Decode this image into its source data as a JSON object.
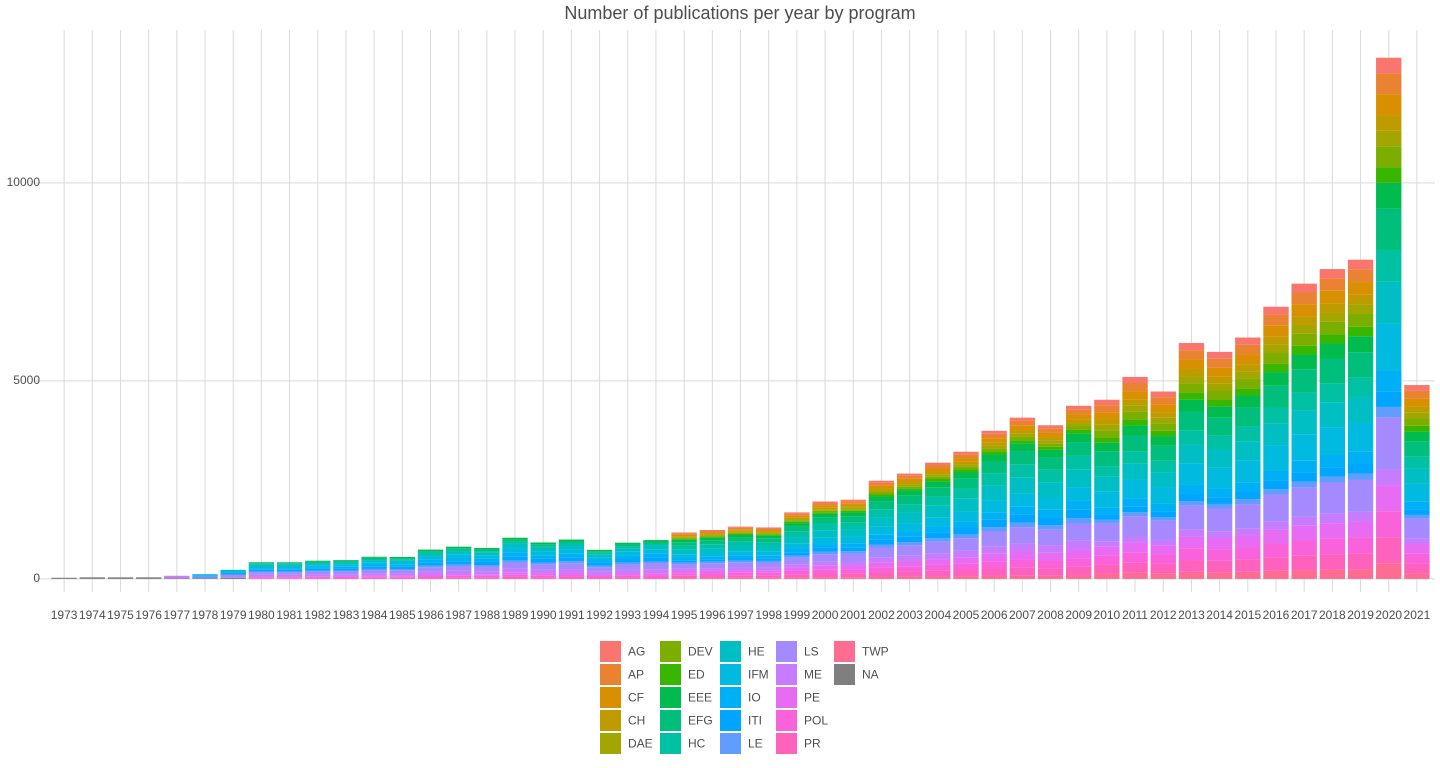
{
  "chart_data": {
    "type": "stacked-bar",
    "title": "Number of publications per year by program",
    "categories": [
      "1973",
      "1974",
      "1975",
      "1976",
      "1977",
      "1978",
      "1979",
      "1980",
      "1981",
      "1982",
      "1983",
      "1984",
      "1985",
      "1986",
      "1987",
      "1988",
      "1989",
      "1990",
      "1991",
      "1992",
      "1993",
      "1994",
      "1995",
      "1996",
      "1997",
      "1998",
      "1999",
      "2000",
      "2001",
      "2002",
      "2003",
      "2004",
      "2005",
      "2006",
      "2007",
      "2008",
      "2009",
      "2010",
      "2011",
      "2012",
      "2013",
      "2014",
      "2015",
      "2016",
      "2017",
      "2018",
      "2019",
      "2020",
      "2021"
    ],
    "ylim": [
      -330,
      13860
    ],
    "yticks": [
      0,
      5000,
      10000
    ],
    "grid": true,
    "series": [
      {
        "name": "AG",
        "color": "#F8766D",
        "values": [
          0,
          0,
          0,
          0,
          0,
          0,
          0,
          0,
          0,
          0,
          0,
          0,
          0,
          0,
          0,
          0,
          0,
          0,
          0,
          0,
          0,
          0,
          23,
          25,
          26,
          26,
          34,
          39,
          40,
          50,
          53,
          59,
          64,
          75,
          81,
          78,
          87,
          136,
          153,
          142,
          179,
          172,
          183,
          206,
          224,
          235,
          242,
          395,
          147
        ]
      },
      {
        "name": "AP",
        "color": "#EA8331",
        "values": [
          0,
          0,
          0,
          0,
          0,
          0,
          0,
          0,
          0,
          0,
          0,
          0,
          0,
          0,
          0,
          0,
          0,
          0,
          0,
          0,
          0,
          0,
          35,
          37,
          40,
          39,
          50,
          59,
          60,
          74,
          80,
          88,
          96,
          112,
          122,
          116,
          131,
          181,
          204,
          189,
          238,
          229,
          244,
          275,
          298,
          313,
          322,
          526,
          196
        ]
      },
      {
        "name": "CF",
        "color": "#D89000",
        "values": [
          0,
          0,
          0,
          0,
          0,
          0,
          0,
          0,
          0,
          0,
          0,
          0,
          0,
          0,
          0,
          0,
          0,
          0,
          0,
          0,
          0,
          0,
          35,
          37,
          40,
          39,
          50,
          59,
          60,
          74,
          80,
          88,
          96,
          112,
          122,
          116,
          131,
          181,
          204,
          189,
          238,
          229,
          244,
          275,
          298,
          313,
          322,
          526,
          196
        ]
      },
      {
        "name": "CH",
        "color": "#C09B00",
        "values": [
          0,
          0,
          0,
          0,
          0,
          0,
          0,
          0,
          0,
          0,
          0,
          0,
          0,
          0,
          0,
          0,
          0,
          0,
          0,
          0,
          0,
          0,
          23,
          25,
          26,
          26,
          34,
          39,
          40,
          50,
          53,
          59,
          64,
          75,
          81,
          78,
          87,
          136,
          153,
          142,
          179,
          172,
          183,
          206,
          224,
          235,
          242,
          395,
          147
        ]
      },
      {
        "name": "DAE",
        "color": "#A3A500",
        "values": [
          0,
          0,
          0,
          0,
          0,
          0,
          0,
          0,
          0,
          0,
          0,
          0,
          0,
          0,
          0,
          0,
          0,
          0,
          0,
          0,
          0,
          0,
          23,
          25,
          26,
          26,
          34,
          39,
          40,
          50,
          53,
          59,
          64,
          75,
          81,
          78,
          87,
          136,
          153,
          142,
          179,
          172,
          183,
          206,
          224,
          235,
          242,
          395,
          147
        ]
      },
      {
        "name": "DEV",
        "color": "#7CAE00",
        "values": [
          0,
          0,
          0,
          0,
          0,
          0,
          0,
          0,
          0,
          0,
          0,
          0,
          0,
          0,
          0,
          0,
          0,
          0,
          0,
          0,
          0,
          0,
          23,
          25,
          26,
          26,
          34,
          39,
          40,
          50,
          53,
          59,
          64,
          75,
          81,
          78,
          87,
          181,
          204,
          189,
          238,
          229,
          244,
          275,
          298,
          313,
          322,
          526,
          196
        ]
      },
      {
        "name": "ED",
        "color": "#39B600",
        "values": [
          0,
          0,
          0,
          0,
          0,
          0,
          0,
          0,
          0,
          0,
          0,
          0,
          0,
          0,
          0,
          0,
          0,
          0,
          0,
          0,
          0,
          0,
          23,
          25,
          26,
          26,
          34,
          39,
          40,
          50,
          53,
          59,
          64,
          75,
          81,
          78,
          87,
          136,
          153,
          142,
          179,
          172,
          183,
          206,
          224,
          235,
          242,
          395,
          147
        ]
      },
      {
        "name": "EEE",
        "color": "#00BB4E",
        "values": [
          0,
          0,
          0,
          0,
          0,
          0,
          0,
          21,
          21,
          23,
          24,
          28,
          28,
          37,
          41,
          39,
          52,
          46,
          50,
          37,
          46,
          49,
          59,
          62,
          66,
          65,
          84,
          98,
          100,
          124,
          133,
          147,
          161,
          187,
          204,
          194,
          219,
          226,
          255,
          237,
          298,
          287,
          305,
          344,
          373,
          391,
          403,
          658,
          245
        ]
      },
      {
        "name": "EFG",
        "color": "#00BF7D",
        "values": [
          0,
          0,
          0,
          0,
          0,
          0,
          0,
          21,
          21,
          23,
          24,
          28,
          28,
          37,
          41,
          39,
          52,
          46,
          50,
          37,
          46,
          49,
          94,
          98,
          106,
          104,
          134,
          156,
          160,
          198,
          213,
          234,
          257,
          299,
          326,
          310,
          350,
          362,
          408,
          378,
          476,
          458,
          487,
          550,
          596,
          626,
          645,
          1053,
          391
        ]
      },
      {
        "name": "HC",
        "color": "#00C1A3",
        "values": [
          0,
          0,
          0,
          0,
          0,
          0,
          0,
          21,
          21,
          23,
          24,
          28,
          28,
          37,
          41,
          39,
          52,
          46,
          50,
          37,
          46,
          49,
          94,
          98,
          106,
          104,
          134,
          156,
          160,
          198,
          213,
          234,
          257,
          299,
          326,
          310,
          350,
          271,
          306,
          284,
          357,
          344,
          365,
          412,
          447,
          469,
          484,
          790,
          293
        ]
      },
      {
        "name": "HE",
        "color": "#00BFC4",
        "values": [
          0,
          0,
          0,
          0,
          0,
          0,
          60,
          42,
          42,
          46,
          47,
          56,
          55,
          74,
          81,
          78,
          104,
          92,
          99,
          73,
          91,
          98,
          117,
          123,
          132,
          130,
          168,
          195,
          200,
          248,
          266,
          293,
          321,
          374,
          407,
          388,
          437,
          362,
          408,
          378,
          476,
          458,
          487,
          550,
          596,
          626,
          645,
          1053,
          391
        ]
      },
      {
        "name": "IFM",
        "color": "#00BAE0",
        "values": [
          0,
          0,
          0,
          0,
          0,
          0,
          0,
          42,
          42,
          46,
          47,
          56,
          55,
          74,
          81,
          78,
          104,
          92,
          99,
          73,
          91,
          98,
          94,
          98,
          106,
          104,
          134,
          156,
          160,
          198,
          213,
          234,
          257,
          299,
          326,
          310,
          350,
          407,
          459,
          426,
          536,
          516,
          548,
          618,
          671,
          704,
          725,
          1184,
          440
        ]
      },
      {
        "name": "IO",
        "color": "#00B0F6",
        "values": [
          0,
          0,
          0,
          0,
          0,
          40,
          0,
          42,
          42,
          46,
          47,
          56,
          55,
          74,
          81,
          78,
          104,
          92,
          99,
          73,
          91,
          98,
          59,
          62,
          66,
          65,
          84,
          98,
          100,
          124,
          133,
          147,
          161,
          187,
          204,
          194,
          219,
          181,
          204,
          189,
          238,
          229,
          244,
          275,
          298,
          313,
          322,
          526,
          196
        ]
      },
      {
        "name": "ITI",
        "color": "#00A5FF",
        "values": [
          0,
          0,
          0,
          0,
          0,
          0,
          60,
          42,
          42,
          46,
          47,
          56,
          55,
          74,
          81,
          78,
          104,
          92,
          99,
          73,
          91,
          98,
          59,
          62,
          66,
          65,
          84,
          98,
          100,
          124,
          133,
          147,
          161,
          187,
          204,
          194,
          219,
          136,
          153,
          142,
          179,
          172,
          183,
          206,
          224,
          235,
          242,
          395,
          147
        ]
      },
      {
        "name": "LE",
        "color": "#619CFF",
        "values": [
          0,
          0,
          0,
          0,
          0,
          60,
          0,
          21,
          21,
          23,
          24,
          28,
          28,
          37,
          41,
          39,
          52,
          46,
          50,
          37,
          46,
          49,
          35,
          37,
          40,
          39,
          50,
          59,
          60,
          74,
          80,
          88,
          96,
          112,
          122,
          116,
          131,
          90,
          102,
          95,
          119,
          115,
          122,
          137,
          149,
          156,
          161,
          263,
          98
        ]
      },
      {
        "name": "LS",
        "color": "#A58AFF",
        "values": [
          0,
          0,
          0,
          0,
          0,
          0,
          80,
          63,
          63,
          69,
          71,
          84,
          83,
          111,
          122,
          117,
          156,
          138,
          149,
          110,
          137,
          147,
          117,
          123,
          132,
          130,
          168,
          195,
          200,
          248,
          266,
          293,
          321,
          374,
          407,
          388,
          437,
          452,
          510,
          473,
          595,
          573,
          609,
          687,
          745,
          782,
          806,
          1316,
          489
        ]
      },
      {
        "name": "ME",
        "color": "#C77CFF",
        "values": [
          0,
          0,
          0,
          0,
          60,
          0,
          0,
          42,
          42,
          46,
          47,
          56,
          55,
          74,
          81,
          78,
          104,
          92,
          99,
          73,
          91,
          98,
          59,
          62,
          66,
          65,
          84,
          98,
          100,
          124,
          133,
          147,
          161,
          187,
          204,
          194,
          219,
          136,
          153,
          142,
          179,
          172,
          183,
          206,
          224,
          235,
          242,
          395,
          147
        ]
      },
      {
        "name": "PE",
        "color": "#E76BF3",
        "values": [
          0,
          0,
          0,
          0,
          0,
          0,
          0,
          21,
          21,
          23,
          24,
          28,
          28,
          37,
          41,
          39,
          52,
          46,
          50,
          37,
          46,
          49,
          59,
          62,
          66,
          65,
          84,
          98,
          100,
          124,
          133,
          147,
          161,
          187,
          204,
          194,
          219,
          226,
          255,
          237,
          298,
          287,
          305,
          344,
          373,
          391,
          403,
          658,
          245
        ]
      },
      {
        "name": "POL",
        "color": "#FA62DB",
        "values": [
          0,
          0,
          0,
          0,
          0,
          0,
          0,
          21,
          21,
          23,
          24,
          28,
          28,
          37,
          41,
          39,
          52,
          46,
          50,
          37,
          46,
          49,
          59,
          62,
          66,
          65,
          84,
          98,
          100,
          124,
          133,
          147,
          161,
          187,
          204,
          194,
          219,
          226,
          255,
          237,
          298,
          287,
          305,
          344,
          373,
          391,
          403,
          658,
          245
        ]
      },
      {
        "name": "PR",
        "color": "#FF62BC",
        "values": [
          0,
          0,
          0,
          0,
          0,
          0,
          0,
          21,
          21,
          23,
          24,
          28,
          28,
          37,
          41,
          39,
          52,
          46,
          50,
          37,
          46,
          49,
          59,
          62,
          66,
          65,
          84,
          98,
          100,
          124,
          133,
          147,
          161,
          187,
          204,
          194,
          219,
          226,
          255,
          237,
          298,
          287,
          305,
          344,
          373,
          391,
          403,
          658,
          245
        ]
      },
      {
        "name": "TWP",
        "color": "#FF6C91",
        "values": [
          0,
          0,
          0,
          0,
          0,
          0,
          0,
          0,
          0,
          0,
          0,
          0,
          0,
          0,
          0,
          0,
          0,
          0,
          0,
          0,
          0,
          0,
          23,
          25,
          26,
          26,
          34,
          39,
          40,
          50,
          53,
          59,
          64,
          75,
          81,
          78,
          87,
          136,
          153,
          142,
          179,
          172,
          183,
          206,
          224,
          235,
          242,
          395,
          147
        ]
      },
      {
        "name": "NA",
        "color": "#7F7F7F",
        "values": [
          30,
          40,
          40,
          40,
          20,
          20,
          30,
          0,
          0,
          0,
          0,
          0,
          0,
          0,
          0,
          0,
          0,
          0,
          0,
          0,
          0,
          0,
          0,
          0,
          0,
          0,
          0,
          0,
          0,
          0,
          0,
          0,
          0,
          0,
          0,
          0,
          0,
          0,
          0,
          0,
          0,
          0,
          0,
          0,
          0,
          0,
          0,
          0,
          0
        ]
      }
    ]
  }
}
